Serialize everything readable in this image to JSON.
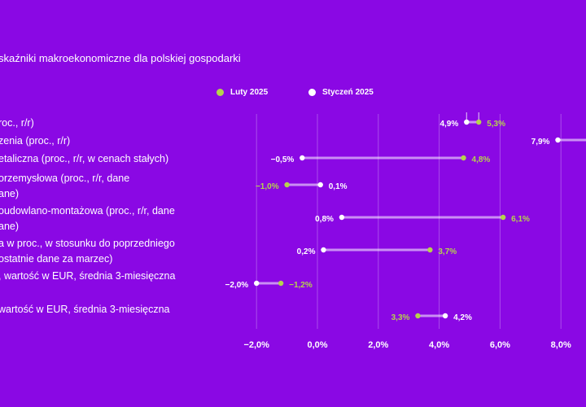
{
  "chart_data": {
    "type": "dumbbell",
    "title": "skaźniki makroekonomiczne dla polskiej gospodarki",
    "series": [
      {
        "name": "Luty 2025",
        "color": "#b5d34c"
      },
      {
        "name": "Styczeń 2025",
        "color": "#ffffff"
      }
    ],
    "xlim": [
      -2.7,
      9.0
    ],
    "xticks": [
      -2,
      0,
      2,
      4,
      6,
      8
    ],
    "tick_labels": [
      "−2,0%",
      "0,0%",
      "2,0%",
      "4,0%",
      "6,0%",
      "8,0%"
    ],
    "grid": true,
    "legend": "top",
    "categories": [
      {
        "label": [
          "roc., r/r)"
        ],
        "feb": 5.3,
        "jan": 4.9,
        "feb_label": "5,3%",
        "jan_label": "4,9%"
      },
      {
        "label": [
          "zenia (proc., r/r)"
        ],
        "feb": null,
        "jan": 7.9,
        "feb_label": "",
        "jan_label": "7,9%"
      },
      {
        "label": [
          "etaliczna (proc., r/r, w cenach stałych)"
        ],
        "feb": 4.8,
        "jan": -0.5,
        "feb_label": "4,8%",
        "jan_label": "−0,5%"
      },
      {
        "label": [
          "orzemysłowa (proc., r/r, dane",
          "ane)"
        ],
        "feb": -1.0,
        "jan": 0.1,
        "feb_label": "−1,0%",
        "jan_label": "0,1%"
      },
      {
        "label": [
          "oudowlano-montażowa (proc., r/r, dane",
          "ane)"
        ],
        "feb": 6.1,
        "jan": 0.8,
        "feb_label": "6,1%",
        "jan_label": "0,8%"
      },
      {
        "label": [
          "a w proc., w stosunku do poprzedniego",
          "ostatnie dane za marzec)"
        ],
        "feb": 3.7,
        "jan": 0.2,
        "feb_label": "3,7%",
        "jan_label": "0,2%"
      },
      {
        "label": [
          ", wartość w EUR, średnia 3-miesięczna"
        ],
        "feb": -1.2,
        "jan": -2.0,
        "feb_label": "−1,2%",
        "jan_label": "−2,0%"
      },
      {
        "label": [
          "wartość w EUR, średnia 3-miesięczna"
        ],
        "feb": 3.3,
        "jan": 4.2,
        "feb_label": "3,3%",
        "jan_label": "4,2%"
      }
    ]
  }
}
